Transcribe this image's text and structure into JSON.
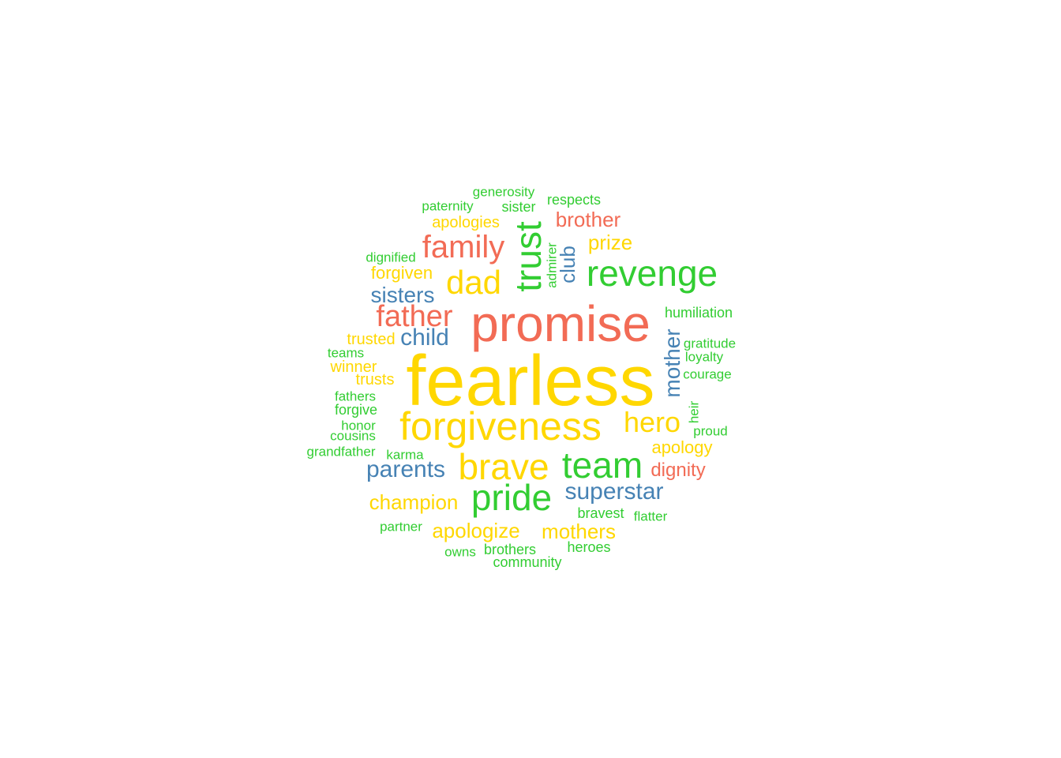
{
  "colors": {
    "yellow": "#FFD700",
    "red": "#F26B55",
    "green": "#32CD32",
    "blue": "#4682B4"
  },
  "words": [
    {
      "text": "fearless",
      "color": "yellow"
    },
    {
      "text": "promise",
      "color": "red"
    },
    {
      "text": "forgiveness",
      "color": "yellow"
    },
    {
      "text": "brave",
      "color": "yellow"
    },
    {
      "text": "team",
      "color": "green"
    },
    {
      "text": "pride",
      "color": "green"
    },
    {
      "text": "revenge",
      "color": "green"
    },
    {
      "text": "trust",
      "color": "green"
    },
    {
      "text": "dad",
      "color": "yellow"
    },
    {
      "text": "family",
      "color": "red"
    },
    {
      "text": "father",
      "color": "red"
    },
    {
      "text": "hero",
      "color": "yellow"
    },
    {
      "text": "superstar",
      "color": "blue"
    },
    {
      "text": "parents",
      "color": "blue"
    },
    {
      "text": "mother",
      "color": "blue"
    },
    {
      "text": "mothers",
      "color": "yellow"
    },
    {
      "text": "apologize",
      "color": "yellow"
    },
    {
      "text": "champion",
      "color": "yellow"
    },
    {
      "text": "child",
      "color": "blue"
    },
    {
      "text": "sisters",
      "color": "blue"
    },
    {
      "text": "brother",
      "color": "red"
    },
    {
      "text": "prize",
      "color": "yellow"
    },
    {
      "text": "club",
      "color": "blue"
    },
    {
      "text": "dignity",
      "color": "red"
    },
    {
      "text": "apology",
      "color": "yellow"
    },
    {
      "text": "forgiven",
      "color": "yellow"
    },
    {
      "text": "apologies",
      "color": "yellow"
    },
    {
      "text": "trusted",
      "color": "yellow"
    },
    {
      "text": "winner",
      "color": "yellow"
    },
    {
      "text": "trusts",
      "color": "yellow"
    },
    {
      "text": "humiliation",
      "color": "green"
    },
    {
      "text": "gratitude",
      "color": "green"
    },
    {
      "text": "loyalty",
      "color": "green"
    },
    {
      "text": "courage",
      "color": "green"
    },
    {
      "text": "heir",
      "color": "green"
    },
    {
      "text": "proud",
      "color": "green"
    },
    {
      "text": "admirer",
      "color": "green"
    },
    {
      "text": "generosity",
      "color": "green"
    },
    {
      "text": "paternity",
      "color": "green"
    },
    {
      "text": "sister",
      "color": "green"
    },
    {
      "text": "respects",
      "color": "green"
    },
    {
      "text": "dignified",
      "color": "green"
    },
    {
      "text": "teams",
      "color": "green"
    },
    {
      "text": "fathers",
      "color": "green"
    },
    {
      "text": "forgive",
      "color": "green"
    },
    {
      "text": "honor",
      "color": "green"
    },
    {
      "text": "cousins",
      "color": "green"
    },
    {
      "text": "grandfather",
      "color": "green"
    },
    {
      "text": "karma",
      "color": "green"
    },
    {
      "text": "partner",
      "color": "green"
    },
    {
      "text": "owns",
      "color": "green"
    },
    {
      "text": "brothers",
      "color": "green"
    },
    {
      "text": "community",
      "color": "green"
    },
    {
      "text": "heroes",
      "color": "green"
    },
    {
      "text": "bravest",
      "color": "green"
    },
    {
      "text": "flatter",
      "color": "green"
    }
  ]
}
